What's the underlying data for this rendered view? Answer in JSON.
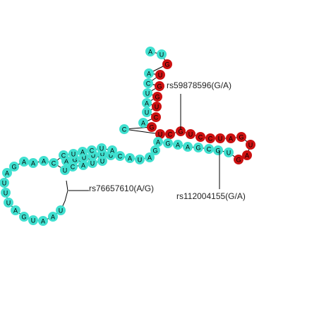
{
  "colors": {
    "loop_or_unpaired": "#40e0d0",
    "highlight": "#cc1111",
    "text": "#000000"
  },
  "nucleotides": [
    {
      "base": "A",
      "color": "cyan"
    },
    {
      "base": "U",
      "color": "cyan"
    },
    {
      "base": "G",
      "color": "red"
    },
    {
      "base": "A",
      "color": "cyan"
    },
    {
      "base": "U",
      "color": "red"
    },
    {
      "base": "C",
      "color": "cyan"
    },
    {
      "base": "G",
      "color": "red"
    },
    {
      "base": "U",
      "color": "cyan"
    },
    {
      "base": "G",
      "color": "red"
    },
    {
      "base": "A",
      "color": "cyan"
    },
    {
      "base": "U",
      "color": "red"
    },
    {
      "base": "U",
      "color": "cyan"
    },
    {
      "base": "C",
      "color": "red"
    },
    {
      "base": "A",
      "color": "cyan"
    },
    {
      "base": "G",
      "color": "red"
    },
    {
      "base": "C",
      "color": "cyan"
    },
    {
      "base": "U",
      "color": "red"
    },
    {
      "base": "C",
      "color": "red"
    },
    {
      "base": "G",
      "color": "red"
    },
    {
      "base": "U",
      "color": "red"
    },
    {
      "base": "C",
      "color": "red"
    },
    {
      "base": "C",
      "color": "red"
    },
    {
      "base": "U",
      "color": "red"
    },
    {
      "base": "A",
      "color": "red"
    },
    {
      "base": "G",
      "color": "red"
    },
    {
      "base": "U",
      "color": "red"
    },
    {
      "base": "A",
      "color": "red"
    },
    {
      "base": "G",
      "color": "red"
    },
    {
      "base": "U",
      "color": "cyan"
    },
    {
      "base": "G",
      "color": "cyan"
    },
    {
      "base": "C",
      "color": "cyan"
    },
    {
      "base": "G",
      "color": "cyan"
    },
    {
      "base": "A",
      "color": "cyan"
    },
    {
      "base": "A",
      "color": "cyan"
    },
    {
      "base": "G",
      "color": "cyan"
    },
    {
      "base": "A",
      "color": "cyan"
    },
    {
      "base": "G",
      "color": "cyan"
    },
    {
      "base": "A",
      "color": "cyan"
    },
    {
      "base": "U",
      "color": "cyan"
    },
    {
      "base": "A",
      "color": "cyan"
    },
    {
      "base": "C",
      "color": "cyan"
    },
    {
      "base": "U",
      "color": "cyan"
    },
    {
      "base": "U",
      "color": "cyan"
    },
    {
      "base": "U",
      "color": "cyan"
    },
    {
      "base": "U",
      "color": "cyan"
    },
    {
      "base": "G",
      "color": "cyan"
    },
    {
      "base": "A",
      "color": "cyan"
    },
    {
      "base": "U",
      "color": "cyan"
    },
    {
      "base": "C",
      "color": "cyan"
    },
    {
      "base": "A",
      "color": "cyan"
    },
    {
      "base": "U",
      "color": "cyan"
    },
    {
      "base": "U",
      "color": "cyan"
    },
    {
      "base": "A",
      "color": "cyan"
    },
    {
      "base": "U",
      "color": "cyan"
    },
    {
      "base": "C",
      "color": "cyan"
    },
    {
      "base": "A",
      "color": "cyan"
    },
    {
      "base": "U",
      "color": "cyan"
    },
    {
      "base": "C",
      "color": "cyan"
    },
    {
      "base": "C",
      "color": "cyan"
    },
    {
      "base": "A",
      "color": "cyan"
    },
    {
      "base": "A",
      "color": "cyan"
    },
    {
      "base": "A",
      "color": "cyan"
    },
    {
      "base": "G",
      "color": "cyan"
    },
    {
      "base": "A",
      "color": "cyan"
    },
    {
      "base": "U",
      "color": "cyan"
    },
    {
      "base": "U",
      "color": "cyan"
    },
    {
      "base": "U",
      "color": "cyan"
    },
    {
      "base": "A",
      "color": "cyan"
    },
    {
      "base": "G",
      "color": "cyan"
    },
    {
      "base": "U",
      "color": "cyan"
    },
    {
      "base": "A",
      "color": "cyan"
    },
    {
      "base": "A",
      "color": "cyan"
    },
    {
      "base": "U",
      "color": "cyan"
    }
  ],
  "annotations": [
    {
      "id": "rs59878596",
      "label": "rs59878596(G/A)"
    },
    {
      "id": "rs112004155",
      "label": "rs112004155(G/A)"
    },
    {
      "id": "rs76657610",
      "label": "rs76657610(A/G)"
    }
  ]
}
